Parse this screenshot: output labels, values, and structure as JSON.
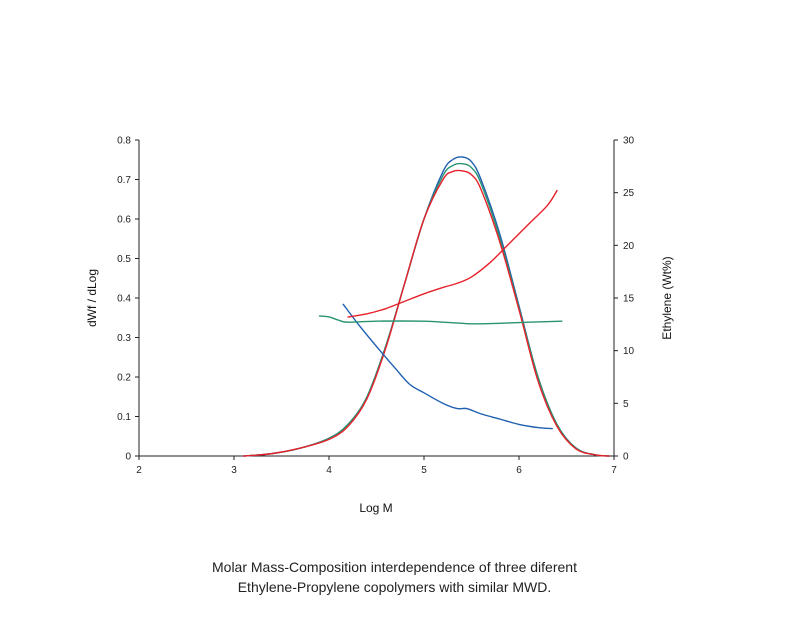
{
  "chart_data": {
    "type": "line",
    "xlabel": "Log M",
    "ylabel_left": "dWf / dLog",
    "ylabel_right": "Ethylene (Wt%)",
    "xlim": [
      2,
      7
    ],
    "ylim_left": [
      0,
      0.8
    ],
    "ylim_right": [
      0,
      30
    ],
    "x_ticks": [
      "2",
      "3",
      "4",
      "5",
      "6",
      "7"
    ],
    "y_left_ticks": [
      "0",
      "0.1",
      "0.2",
      "0.3",
      "0.4",
      "0.5",
      "0.6",
      "0.7",
      "0.8"
    ],
    "y_right_ticks": [
      "0",
      "5",
      "10",
      "15",
      "20",
      "25",
      "30"
    ],
    "grid": false,
    "legend": "none",
    "series": [
      {
        "axis": "left",
        "color": "#1f5fb0",
        "x": [
          3.1,
          3.4,
          3.7,
          4.0,
          4.2,
          4.4,
          4.6,
          4.8,
          5.0,
          5.2,
          5.3,
          5.4,
          5.5,
          5.6,
          5.8,
          6.0,
          6.2,
          6.4,
          6.6,
          6.8,
          6.95
        ],
        "y": [
          0.0,
          0.006,
          0.02,
          0.045,
          0.08,
          0.15,
          0.28,
          0.44,
          0.6,
          0.72,
          0.75,
          0.757,
          0.745,
          0.7,
          0.56,
          0.38,
          0.2,
          0.08,
          0.02,
          0.003,
          0.0
        ]
      },
      {
        "axis": "left",
        "color": "#2a9470",
        "x": [
          3.1,
          3.4,
          3.7,
          4.0,
          4.2,
          4.4,
          4.6,
          4.8,
          5.0,
          5.2,
          5.3,
          5.4,
          5.5,
          5.6,
          5.8,
          6.0,
          6.2,
          6.4,
          6.6,
          6.8,
          6.95
        ],
        "y": [
          0.0,
          0.006,
          0.02,
          0.045,
          0.08,
          0.15,
          0.28,
          0.44,
          0.6,
          0.71,
          0.735,
          0.74,
          0.73,
          0.69,
          0.55,
          0.375,
          0.2,
          0.08,
          0.02,
          0.003,
          0.0
        ]
      },
      {
        "axis": "left",
        "color": "#e8202a",
        "x": [
          3.1,
          3.4,
          3.7,
          4.0,
          4.2,
          4.4,
          4.6,
          4.8,
          5.0,
          5.2,
          5.3,
          5.4,
          5.5,
          5.6,
          5.8,
          6.0,
          6.2,
          6.4,
          6.6,
          6.8,
          6.95
        ],
        "y": [
          0.0,
          0.006,
          0.02,
          0.042,
          0.075,
          0.145,
          0.275,
          0.44,
          0.6,
          0.7,
          0.72,
          0.722,
          0.712,
          0.675,
          0.54,
          0.37,
          0.19,
          0.075,
          0.018,
          0.003,
          0.0
        ]
      },
      {
        "axis": "right",
        "color": "#1f5fb0",
        "x": [
          4.15,
          4.3,
          4.5,
          4.7,
          4.85,
          5.0,
          5.2,
          5.35,
          5.45,
          5.6,
          5.8,
          6.0,
          6.2,
          6.35
        ],
        "y": [
          14.4,
          12.6,
          10.4,
          8.3,
          6.8,
          6.0,
          5.0,
          4.5,
          4.5,
          4.0,
          3.5,
          3.0,
          2.7,
          2.6
        ]
      },
      {
        "axis": "right",
        "color": "#2a9470",
        "x": [
          3.9,
          4.0,
          4.1,
          4.2,
          4.5,
          5.0,
          5.2,
          5.4,
          5.5,
          5.8,
          6.1,
          6.45
        ],
        "y": [
          13.3,
          13.2,
          12.9,
          12.7,
          12.8,
          12.8,
          12.7,
          12.6,
          12.55,
          12.6,
          12.7,
          12.8
        ]
      },
      {
        "axis": "right",
        "color": "#e8202a",
        "x": [
          4.2,
          4.4,
          4.6,
          4.8,
          5.0,
          5.2,
          5.35,
          5.5,
          5.7,
          5.9,
          6.1,
          6.3,
          6.4
        ],
        "y": [
          13.2,
          13.5,
          14.0,
          14.7,
          15.4,
          16.0,
          16.4,
          17.0,
          18.4,
          20.2,
          22.0,
          23.8,
          25.2
        ]
      }
    ]
  },
  "caption": {
    "line1": "Molar Mass-Composition interdependence of three diferent",
    "line2": "Ethylene-Propylene copolymers with similar MWD."
  }
}
